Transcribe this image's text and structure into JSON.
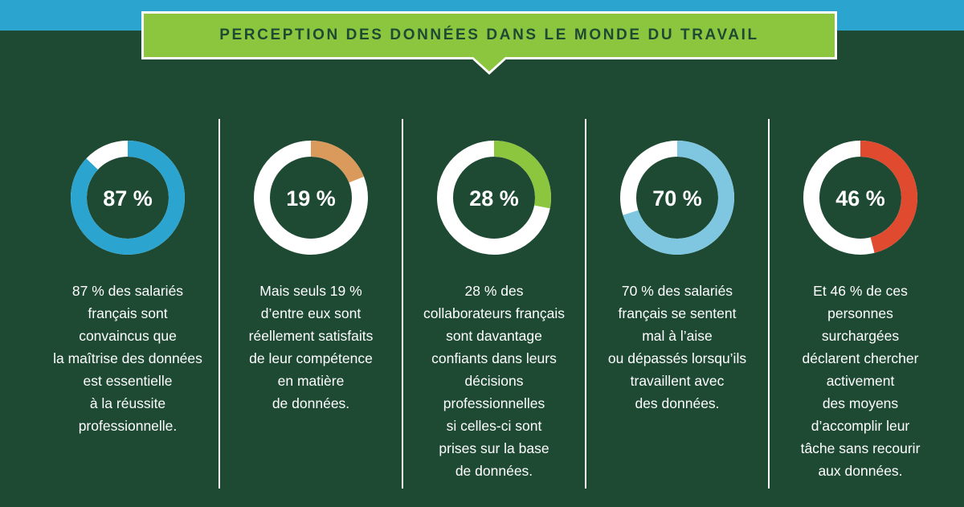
{
  "title": "PERCEPTION DES DONNÉES DANS LE MONDE DU TRAVAIL",
  "colors": {
    "background": "#1e4a34",
    "top_strip": "#2ba4cf",
    "banner": "#8cc63f",
    "ring_base": "#ffffff"
  },
  "chart_data": [
    {
      "type": "pie",
      "value": 87,
      "label": "87 %",
      "color": "#2ba4cf",
      "description": "87 % des salariés\nfrançais sont\nconvaincus que\nla maîtrise des données\nest essentielle\nà la réussite\nprofessionnelle."
    },
    {
      "type": "pie",
      "value": 19,
      "label": "19 %",
      "color": "#d99a5b",
      "description": "Mais seuls 19 %\nd’entre eux sont\nréellement satisfaits\nde leur compétence\nen matière\nde données."
    },
    {
      "type": "pie",
      "value": 28,
      "label": "28 %",
      "color": "#8cc63f",
      "description": "28 % des\ncollaborateurs français\nsont davantage\nconfiants dans leurs\ndécisions\nprofessionnelles\nsi celles-ci sont\nprises sur la base\nde données."
    },
    {
      "type": "pie",
      "value": 70,
      "label": "70 %",
      "color": "#7fc7e0",
      "description": "70 % des salariés\nfrançais se sentent\nmal à l’aise\nou dépassés lorsqu’ils\ntravaillent avec\ndes données."
    },
    {
      "type": "pie",
      "value": 46,
      "label": "46 %",
      "color": "#e04a2f",
      "description": "Et 46 % de ces\npersonnes\nsurchargées\ndéclarent chercher\nactivement\ndes moyens\nd’accomplir leur\ntâche sans recourir\naux données."
    }
  ]
}
